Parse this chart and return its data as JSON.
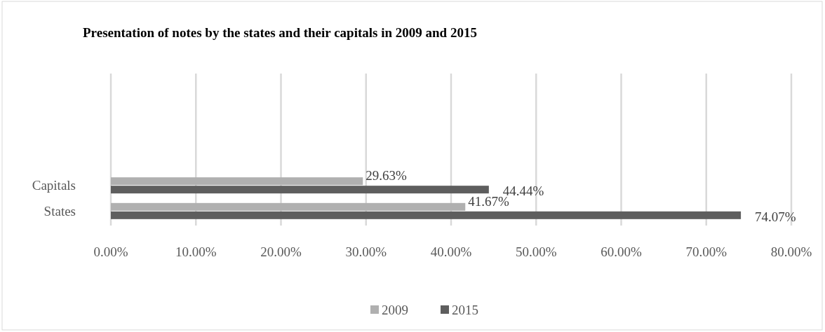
{
  "chart_data": {
    "type": "bar",
    "orientation": "horizontal",
    "title": "Presentation of notes by the states and their capitals in 2009 and 2015",
    "categories": [
      "Capitals",
      "States"
    ],
    "series": [
      {
        "name": "2009",
        "color": "#b0b0b0",
        "values": [
          29.63,
          41.67
        ],
        "value_labels": [
          "29.63%",
          "41.67%"
        ]
      },
      {
        "name": "2015",
        "color": "#5e5e5e",
        "values": [
          44.44,
          74.07
        ],
        "value_labels": [
          "44.44%",
          "74.07%"
        ]
      }
    ],
    "xlim": [
      0,
      80
    ],
    "xticks": [
      {
        "value": 0,
        "label": "0.00%"
      },
      {
        "value": 10,
        "label": "10.00%"
      },
      {
        "value": 20,
        "label": "20.00%"
      },
      {
        "value": 30,
        "label": "30.00%"
      },
      {
        "value": 40,
        "label": "40.00%"
      },
      {
        "value": 50,
        "label": "50.00%"
      },
      {
        "value": 60,
        "label": "60.00%"
      },
      {
        "value": 70,
        "label": "70.00%"
      },
      {
        "value": 80,
        "label": "80.00%"
      }
    ],
    "grid": "x",
    "legend": "bottom"
  }
}
